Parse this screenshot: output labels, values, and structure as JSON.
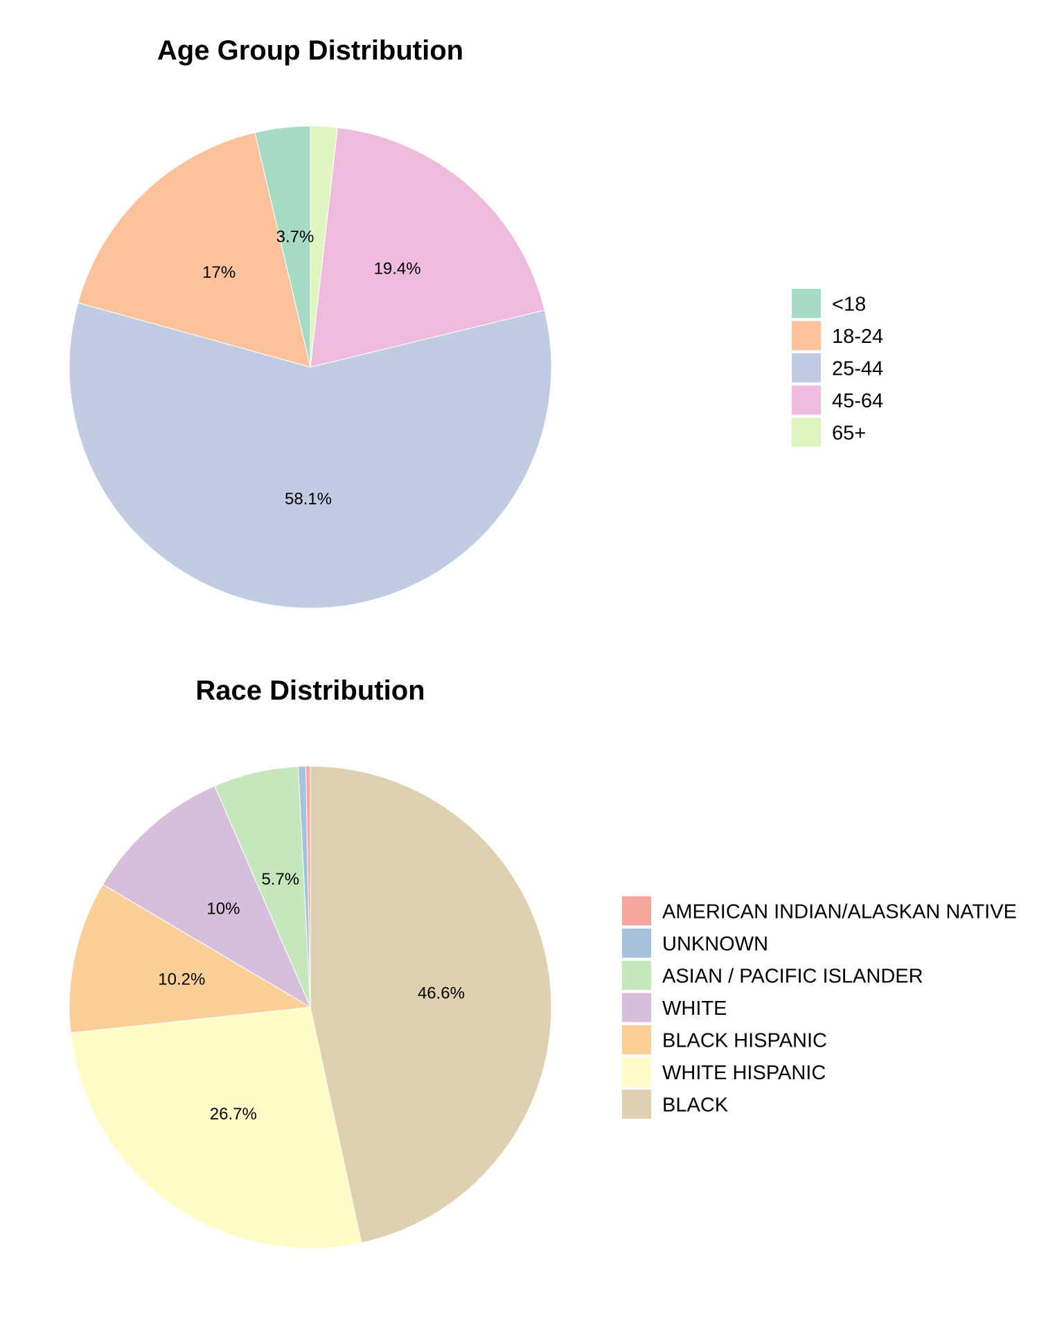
{
  "chart_data": [
    {
      "type": "pie",
      "title": "Age Group Distribution",
      "categories": [
        "<18",
        "18-24",
        "25-44",
        "45-64",
        "65+"
      ],
      "values": [
        3.7,
        17.0,
        58.1,
        19.4,
        1.8
      ],
      "labels": [
        "3.7%",
        "17%",
        "58.1%",
        "19.4%",
        ""
      ],
      "colors": [
        "#a6dcc3",
        "#fbc29c",
        "#c1cbe1",
        "#efbbdc",
        "#e1f5c0"
      ],
      "legend": {
        "entries": [
          "<18",
          "18-24",
          "25-44",
          "45-64",
          "65+"
        ],
        "position": "right"
      },
      "direction": "counterclockwise",
      "start": "top"
    },
    {
      "type": "pie",
      "title": "Race Distribution",
      "categories": [
        "AMERICAN INDIAN/ALASKAN NATIVE",
        "UNKNOWN",
        "ASIAN / PACIFIC ISLANDER",
        "WHITE",
        "BLACK HISPANIC",
        "WHITE HISPANIC",
        "BLACK"
      ],
      "values": [
        0.3,
        0.5,
        5.7,
        10.0,
        10.2,
        26.7,
        46.6
      ],
      "labels": [
        "",
        "",
        "5.7%",
        "10%",
        "10.2%",
        "26.7%",
        "46.6%"
      ],
      "colors": [
        "#f8a7a0",
        "#a6c1dd",
        "#c4e8bb",
        "#d6bedc",
        "#fcce98",
        "#fffcc5",
        "#dfd0b0"
      ],
      "legend": {
        "entries": [
          "AMERICAN INDIAN/ALASKAN NATIVE",
          "UNKNOWN",
          "ASIAN / PACIFIC ISLANDER",
          "WHITE",
          "BLACK HISPANIC",
          "WHITE HISPANIC",
          "BLACK"
        ],
        "position": "right"
      },
      "direction": "counterclockwise",
      "start": "top"
    }
  ]
}
